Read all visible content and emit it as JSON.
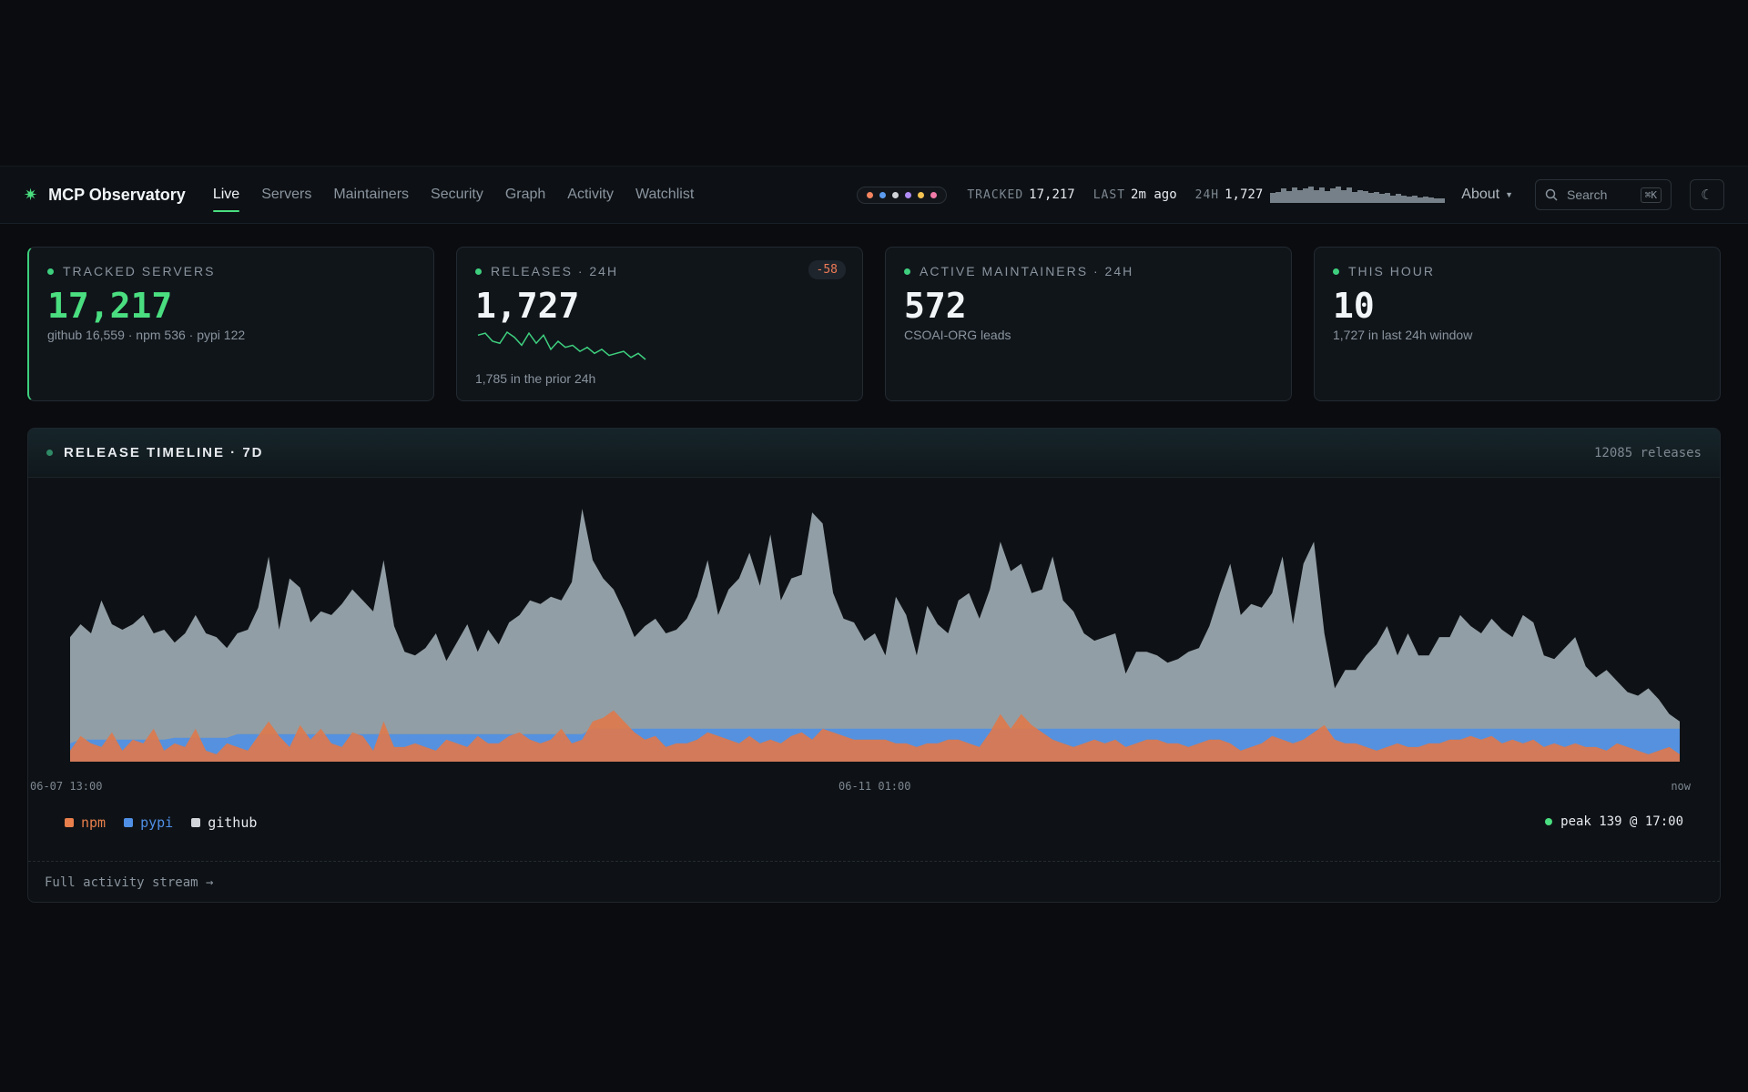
{
  "app": {
    "title": "MCP Observatory"
  },
  "nav": {
    "links": [
      "Live",
      "Servers",
      "Maintainers",
      "Security",
      "Graph",
      "Activity",
      "Watchlist"
    ],
    "active": "Live",
    "status_dot_colors": [
      "#f4845f",
      "#5b9cf0",
      "#d0d4d8",
      "#b08cf5",
      "#f5c451",
      "#f07aa8"
    ],
    "tracked_label": "TRACKED",
    "tracked_value": "17,217",
    "last_label": "LAST",
    "last_value": "2m ago",
    "h24_label": "24H",
    "h24_value": "1,727",
    "h24_bars": [
      9,
      10,
      13,
      11,
      14,
      12,
      13,
      15,
      12,
      14,
      11,
      13,
      15,
      12,
      14,
      10,
      12,
      11,
      9,
      10,
      8,
      9,
      7,
      8,
      7,
      6,
      7,
      5,
      6,
      5,
      4,
      4
    ],
    "about_label": "About",
    "search_placeholder": "Search",
    "search_shortcut": "⌘K",
    "theme_icon": "☾"
  },
  "cards": [
    {
      "title": "TRACKED SERVERS",
      "value": "17,217",
      "sub": "github 16,559 · npm 536 · pypi 122"
    },
    {
      "title": "RELEASES · 24H",
      "value": "1,727",
      "delta": "-58",
      "sub": "1,785 in the prior 24h",
      "spark": [
        52,
        54,
        46,
        44,
        55,
        50,
        42,
        54,
        44,
        52,
        38,
        46,
        40,
        42,
        36,
        40,
        34,
        38,
        32,
        34,
        36,
        30,
        34,
        28
      ]
    },
    {
      "title": "ACTIVE MAINTAINERS · 24H",
      "value": "572",
      "sub": "CSOAI-ORG leads"
    },
    {
      "title": "THIS HOUR",
      "value": "10",
      "sub": "1,727 in last 24h window"
    }
  ],
  "timeline": {
    "title": "RELEASE TIMELINE · 7D",
    "count": "12085 releases",
    "axis_labels": [
      "06-07 13:00",
      "06-11 01:00",
      "now"
    ],
    "legend": [
      {
        "name": "npm",
        "color": "#e87f4c"
      },
      {
        "name": "pypi",
        "color": "#4f8fe6"
      },
      {
        "name": "github",
        "color": "#d2d6da"
      }
    ],
    "peak": "peak 139 @ 17:00",
    "footer_link": "Full activity stream →"
  },
  "chart_data": {
    "type": "area",
    "series": [
      {
        "name": "github",
        "color": "#9aa6ad",
        "values": [
          68,
          75,
          70,
          88,
          75,
          72,
          75,
          80,
          70,
          72,
          65,
          70,
          80,
          70,
          68,
          62,
          70,
          72,
          84,
          112,
          72,
          100,
          95,
          76,
          82,
          80,
          86,
          94,
          88,
          82,
          110,
          74,
          60,
          58,
          62,
          70,
          55,
          65,
          75,
          60,
          72,
          64,
          76,
          80,
          88,
          86,
          90,
          88,
          98,
          138,
          110,
          100,
          94,
          82,
          68,
          74,
          78,
          70,
          72,
          78,
          90,
          110,
          80,
          94,
          100,
          114,
          96,
          124,
          88,
          100,
          102,
          136,
          130,
          92,
          78,
          76,
          66,
          70,
          58,
          90,
          80,
          58,
          85,
          75,
          70,
          88,
          92,
          78,
          94,
          120,
          104,
          108,
          92,
          94,
          112,
          88,
          82,
          70,
          66,
          68,
          70,
          48,
          60,
          60,
          58,
          54,
          56,
          60,
          62,
          74,
          92,
          108,
          80,
          86,
          84,
          92,
          112,
          75,
          108,
          120,
          70,
          40,
          50,
          50,
          58,
          64,
          74,
          58,
          70,
          58,
          58,
          68,
          68,
          80,
          74,
          70,
          78,
          72,
          68,
          80,
          76,
          58,
          56,
          62,
          68,
          52,
          46,
          50,
          44,
          38,
          36,
          40,
          34,
          26,
          22
        ]
      },
      {
        "name": "pypi",
        "color": "#4f8fe6",
        "values": [
          10,
          12,
          12,
          12,
          12,
          12,
          12,
          12,
          12,
          12,
          13,
          13,
          13,
          13,
          13,
          13,
          15,
          15,
          15,
          15,
          15,
          15,
          15,
          15,
          15,
          15,
          15,
          15,
          15,
          15,
          15,
          15,
          15,
          15,
          15,
          15,
          15,
          15,
          15,
          15,
          15,
          15,
          15,
          15,
          15,
          15,
          15,
          15,
          15,
          15,
          18,
          18,
          18,
          18,
          18,
          18,
          18,
          18,
          18,
          18,
          18,
          18,
          18,
          18,
          18,
          18,
          18,
          18,
          18,
          18,
          18,
          18,
          18,
          18,
          18,
          18,
          18,
          18,
          18,
          18,
          18,
          18,
          18,
          18,
          18,
          18,
          18,
          18,
          18,
          18,
          18,
          18,
          18,
          18,
          18,
          18,
          18,
          18,
          18,
          18,
          18,
          18,
          18,
          18,
          18,
          18,
          18,
          18,
          18,
          18,
          18,
          18,
          18,
          18,
          18,
          18,
          18,
          18,
          18,
          18,
          18,
          18,
          18,
          18,
          18,
          18,
          18,
          18,
          18,
          18,
          18,
          18,
          18,
          18,
          18,
          18,
          18,
          18,
          18,
          18,
          18,
          18,
          18,
          18,
          18,
          18,
          18,
          18,
          18,
          18,
          18,
          18,
          18,
          18,
          18
        ]
      },
      {
        "name": "npm",
        "color": "#e0784a",
        "values": [
          6,
          14,
          10,
          8,
          16,
          6,
          12,
          10,
          18,
          6,
          10,
          8,
          18,
          6,
          4,
          10,
          8,
          6,
          14,
          22,
          14,
          8,
          20,
          12,
          18,
          10,
          8,
          16,
          14,
          6,
          22,
          8,
          8,
          10,
          8,
          6,
          12,
          10,
          8,
          14,
          10,
          10,
          14,
          16,
          12,
          10,
          12,
          18,
          10,
          12,
          22,
          24,
          28,
          22,
          16,
          12,
          14,
          8,
          10,
          10,
          12,
          16,
          14,
          12,
          10,
          14,
          10,
          12,
          10,
          14,
          16,
          12,
          18,
          16,
          14,
          12,
          12,
          12,
          12,
          10,
          10,
          8,
          10,
          10,
          12,
          12,
          10,
          8,
          16,
          26,
          18,
          26,
          20,
          16,
          12,
          10,
          8,
          10,
          12,
          10,
          12,
          8,
          10,
          12,
          12,
          10,
          10,
          8,
          10,
          12,
          12,
          10,
          6,
          8,
          10,
          14,
          12,
          10,
          12,
          16,
          20,
          12,
          10,
          10,
          8,
          6,
          8,
          10,
          8,
          8,
          10,
          10,
          12,
          12,
          14,
          12,
          14,
          10,
          12,
          10,
          12,
          8,
          10,
          8,
          10,
          8,
          8,
          6,
          10,
          8,
          6,
          4,
          6,
          8,
          4
        ]
      }
    ],
    "x_range": [
      "06-07 13:00",
      "now"
    ],
    "x_tick_labels": [
      "06-07 13:00",
      "06-11 01:00",
      "now"
    ],
    "ylim": [
      0,
      145
    ],
    "stacked": false
  }
}
